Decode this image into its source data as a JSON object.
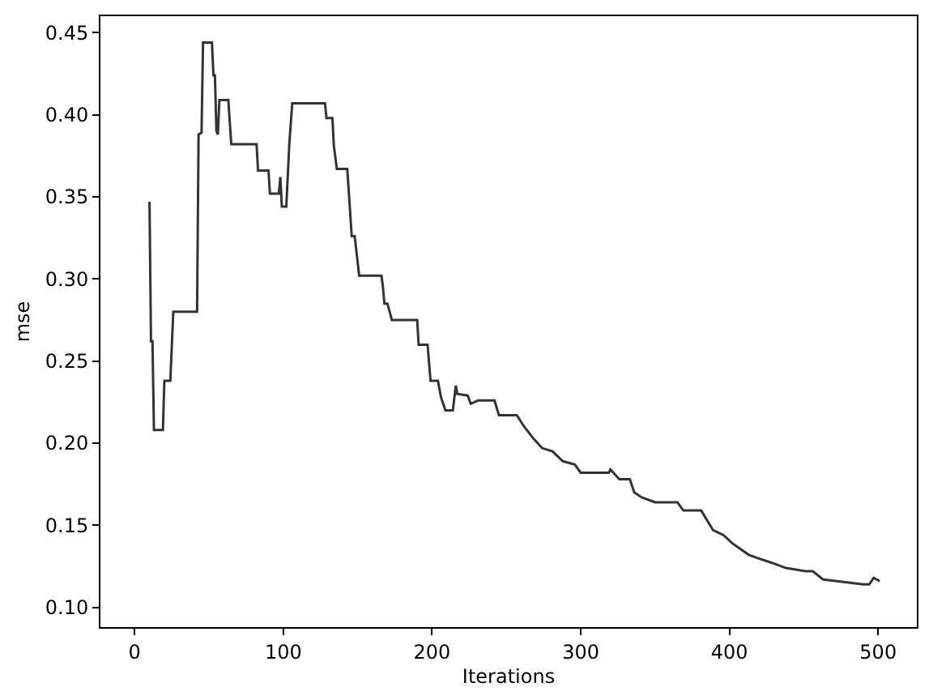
{
  "chart_data": {
    "type": "line",
    "xlabel": "Iterations",
    "ylabel": "mse",
    "xlim": [
      -23,
      526
    ],
    "ylim": [
      0.088,
      0.46
    ],
    "xticks": [
      0,
      100,
      200,
      300,
      400,
      500
    ],
    "yticks": [
      {
        "value": 0.1,
        "label": "0.10"
      },
      {
        "value": 0.15,
        "label": "0.15"
      },
      {
        "value": 0.2,
        "label": "0.20"
      },
      {
        "value": 0.25,
        "label": "0.25"
      },
      {
        "value": 0.3,
        "label": "0.30"
      },
      {
        "value": 0.35,
        "label": "0.35"
      },
      {
        "value": 0.4,
        "label": "0.40"
      },
      {
        "value": 0.45,
        "label": "0.45"
      }
    ],
    "marker": "none",
    "line_style": "solid",
    "series": [
      {
        "color": "#333333",
        "x": [
          10,
          11,
          12,
          13,
          19,
          20,
          24,
          26,
          42,
          43,
          45,
          46,
          52,
          53,
          54,
          55,
          56,
          57,
          63,
          65,
          82,
          83,
          90,
          91,
          97,
          98,
          99,
          102,
          104,
          106,
          128,
          129,
          133,
          134,
          136,
          143,
          146,
          148,
          151,
          166,
          167,
          168,
          170,
          173,
          190,
          191,
          197,
          199,
          204,
          206,
          209,
          214,
          216,
          217,
          224,
          226,
          231,
          242,
          245,
          257,
          262,
          268,
          274,
          281,
          288,
          296,
          300,
          319,
          320,
          326,
          333,
          336,
          341,
          350,
          365,
          369,
          381,
          389,
          396,
          402,
          413,
          419,
          429,
          438,
          451,
          456,
          463,
          490,
          494,
          497,
          501
        ],
        "values": [
          0.347,
          0.262,
          0.262,
          0.208,
          0.208,
          0.238,
          0.238,
          0.28,
          0.28,
          0.388,
          0.389,
          0.444,
          0.444,
          0.424,
          0.424,
          0.39,
          0.388,
          0.409,
          0.409,
          0.382,
          0.382,
          0.366,
          0.366,
          0.352,
          0.352,
          0.362,
          0.344,
          0.344,
          0.382,
          0.407,
          0.407,
          0.398,
          0.398,
          0.381,
          0.367,
          0.367,
          0.326,
          0.326,
          0.302,
          0.302,
          0.295,
          0.285,
          0.285,
          0.275,
          0.275,
          0.26,
          0.26,
          0.238,
          0.238,
          0.228,
          0.22,
          0.22,
          0.235,
          0.23,
          0.229,
          0.224,
          0.226,
          0.226,
          0.217,
          0.217,
          0.21,
          0.203,
          0.197,
          0.195,
          0.189,
          0.187,
          0.182,
          0.182,
          0.184,
          0.178,
          0.178,
          0.17,
          0.167,
          0.164,
          0.164,
          0.159,
          0.159,
          0.147,
          0.144,
          0.139,
          0.132,
          0.13,
          0.127,
          0.124,
          0.122,
          0.122,
          0.117,
          0.114,
          0.114,
          0.118,
          0.116
        ]
      }
    ]
  }
}
